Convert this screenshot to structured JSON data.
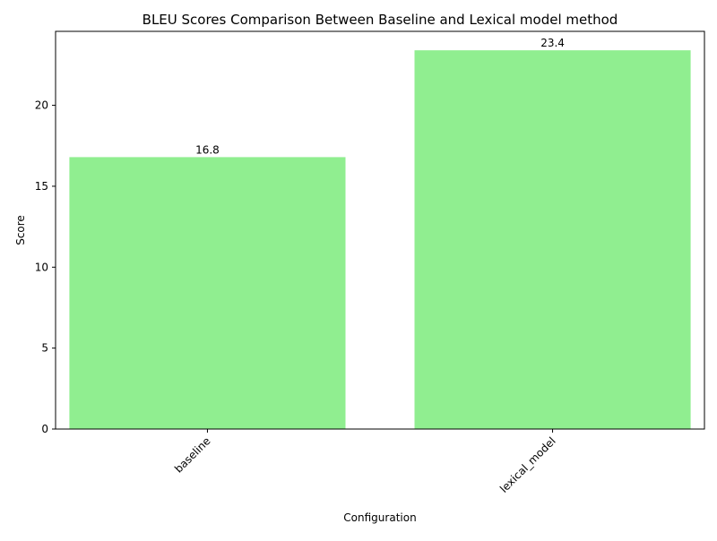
{
  "chart_data": {
    "type": "bar",
    "title": "BLEU Scores Comparison Between Baseline and Lexical model method",
    "xlabel": "Configuration",
    "ylabel": "Score",
    "categories": [
      "baseline",
      "lexical_model"
    ],
    "values": [
      16.8,
      23.4
    ],
    "data_labels": [
      "16.8",
      "23.4"
    ],
    "ylim": [
      0,
      24.57
    ],
    "yticks": [
      0,
      5,
      10,
      15,
      20
    ],
    "ytick_labels": [
      "0",
      "5",
      "10",
      "15",
      "20"
    ],
    "xtick_rotation": 45,
    "grid": false,
    "legend": "none",
    "colors": {
      "bar": "#90ee90",
      "axes": "#000000"
    }
  }
}
